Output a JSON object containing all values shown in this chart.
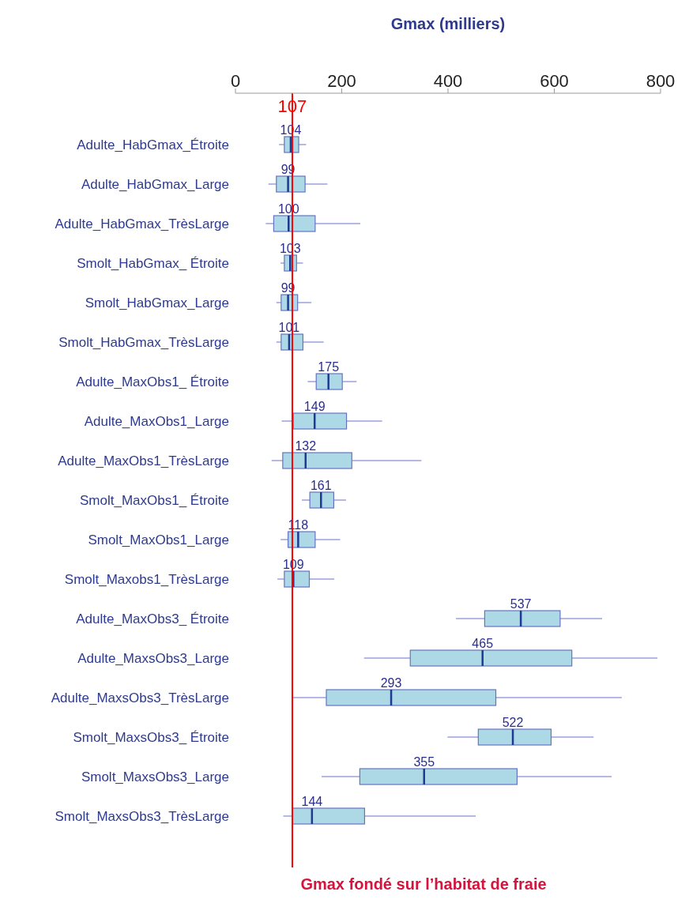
{
  "chart_data": {
    "type": "box",
    "orientation": "horizontal",
    "xlabel": "Gmax (milliers)",
    "color": "#add8e6",
    "categories": [
      "Adulte_HabGmax_Étroite",
      "Adulte_HabGmax_Large",
      "Adulte_HabGmax_TrèsLarge",
      "Smolt_HabGmax_ Étroite",
      "Smolt_HabGmax_Large",
      "Smolt_HabGmax_TrèsLarge",
      "Adulte_MaxObs1_ Étroite",
      "Adulte_MaxObs1_Large",
      "Adulte_MaxObs1_TrèsLarge",
      "Smolt_MaxObs1_ Étroite",
      "Smolt_MaxObs1_Large",
      "Smolt_Maxobs1_TrèsLarge",
      "Adulte_MaxObs3_ Étroite",
      "Adulte_MaxsObs3_Large",
      "Adulte_MaxsObs3_TrèsLarge",
      "Smolt_MaxsObs3_ Étroite",
      "Smolt_MaxsObs3_Large",
      "Smolt_MaxsObs3_TrèsLarge"
    ],
    "boxes": [
      {
        "low": 82,
        "q1": 92,
        "median": 104,
        "q3": 119,
        "high": 133
      },
      {
        "low": 62,
        "q1": 77,
        "median": 99,
        "q3": 131,
        "high": 173
      },
      {
        "low": 57,
        "q1": 72,
        "median": 100,
        "q3": 150,
        "high": 235
      },
      {
        "low": 85,
        "q1": 92,
        "median": 103,
        "q3": 115,
        "high": 127
      },
      {
        "low": 77,
        "q1": 86,
        "median": 99,
        "q3": 117,
        "high": 143
      },
      {
        "low": 77,
        "q1": 86,
        "median": 101,
        "q3": 127,
        "high": 166
      },
      {
        "low": 136,
        "q1": 152,
        "median": 175,
        "q3": 201,
        "high": 228
      },
      {
        "low": 87,
        "q1": 109,
        "median": 149,
        "q3": 209,
        "high": 276
      },
      {
        "low": 68,
        "q1": 89,
        "median": 132,
        "q3": 219,
        "high": 350
      },
      {
        "low": 125,
        "q1": 140,
        "median": 161,
        "q3": 185,
        "high": 208
      },
      {
        "low": 85,
        "q1": 99,
        "median": 118,
        "q3": 150,
        "high": 197
      },
      {
        "low": 79,
        "q1": 92,
        "median": 109,
        "q3": 139,
        "high": 186
      },
      {
        "low": 415,
        "q1": 469,
        "median": 537,
        "q3": 611,
        "high": 690
      },
      {
        "low": 242,
        "q1": 329,
        "median": 465,
        "q3": 633,
        "high": 794
      },
      {
        "low": 107,
        "q1": 171,
        "median": 293,
        "q3": 490,
        "high": 727
      },
      {
        "low": 399,
        "q1": 457,
        "median": 522,
        "q3": 594,
        "high": 674
      },
      {
        "low": 162,
        "q1": 234,
        "median": 355,
        "q3": 530,
        "high": 708
      },
      {
        "low": 90,
        "q1": 107,
        "median": 144,
        "q3": 243,
        "high": 452
      }
    ],
    "value_labels": [
      "104",
      "99",
      "100",
      "103",
      "99",
      "101",
      "175",
      "149",
      "132",
      "161",
      "118",
      "109",
      "537",
      "465",
      "293",
      "522",
      "355",
      "144"
    ],
    "xlim": [
      0,
      800
    ],
    "xticks": [
      0,
      200,
      400,
      600,
      800
    ],
    "ref_lines": [
      {
        "axis": "x",
        "value": 107,
        "label": "107",
        "color": "#ff0000"
      }
    ],
    "grid": false,
    "legend": false,
    "annotations": [
      "Gmax fondé sur l’habitat de fraie"
    ]
  }
}
